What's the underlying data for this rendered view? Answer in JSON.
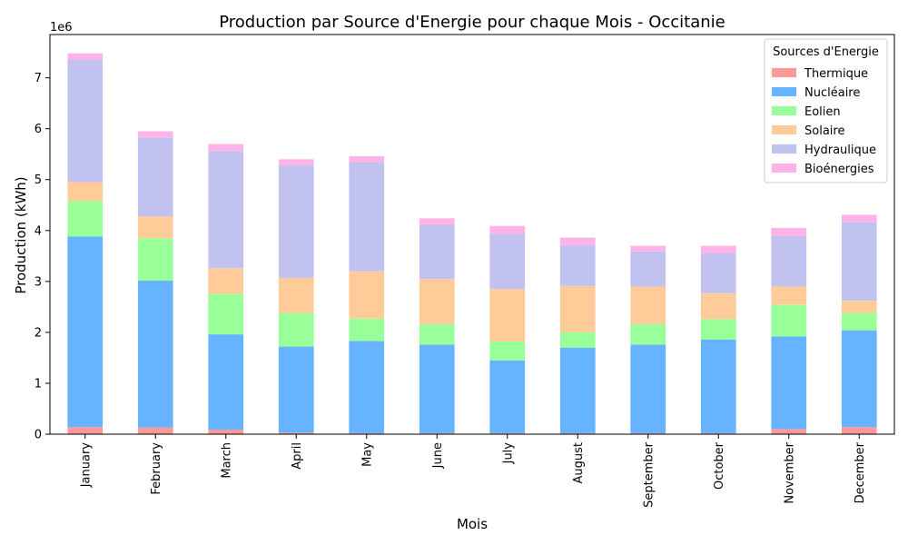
{
  "chart_data": {
    "type": "bar",
    "stacked": true,
    "title": "Production par Source d'Energie pour chaque Mois - Occitanie",
    "xlabel": "Mois",
    "ylabel": "Production (kWh)",
    "y_scale_note": "1e6",
    "ylim": [
      0,
      7850000
    ],
    "yticks": [
      0,
      1,
      2,
      3,
      4,
      5,
      6,
      7
    ],
    "yticks_multiplier": 1000000,
    "grid": false,
    "legend_title": "Sources d'Energie",
    "legend_position": "top-right",
    "categories": [
      "January",
      "February",
      "March",
      "April",
      "May",
      "June",
      "July",
      "August",
      "September",
      "October",
      "November",
      "December"
    ],
    "series": [
      {
        "name": "Thermique",
        "color": "#ff9999",
        "values": [
          140000,
          130000,
          90000,
          30000,
          20000,
          20000,
          20000,
          20000,
          20000,
          20000,
          100000,
          140000
        ]
      },
      {
        "name": "Nucléaire",
        "color": "#66b3ff",
        "values": [
          3740000,
          2890000,
          1870000,
          1690000,
          1810000,
          1740000,
          1430000,
          1680000,
          1740000,
          1840000,
          1820000,
          1900000
        ]
      },
      {
        "name": "Eolien",
        "color": "#99ff99",
        "values": [
          700000,
          830000,
          800000,
          660000,
          440000,
          400000,
          370000,
          300000,
          400000,
          400000,
          620000,
          340000
        ]
      },
      {
        "name": "Solaire",
        "color": "#ffcc99",
        "values": [
          370000,
          430000,
          500000,
          690000,
          930000,
          890000,
          1030000,
          910000,
          740000,
          510000,
          360000,
          240000
        ]
      },
      {
        "name": "Hydraulique",
        "color": "#c2c2f0",
        "values": [
          2410000,
          1550000,
          2300000,
          2210000,
          2140000,
          1070000,
          1090000,
          800000,
          690000,
          780000,
          990000,
          1550000
        ]
      },
      {
        "name": "Bioénergies",
        "color": "#ffb3e6",
        "values": [
          120000,
          120000,
          140000,
          120000,
          120000,
          120000,
          150000,
          150000,
          110000,
          150000,
          160000,
          140000
        ]
      }
    ]
  }
}
